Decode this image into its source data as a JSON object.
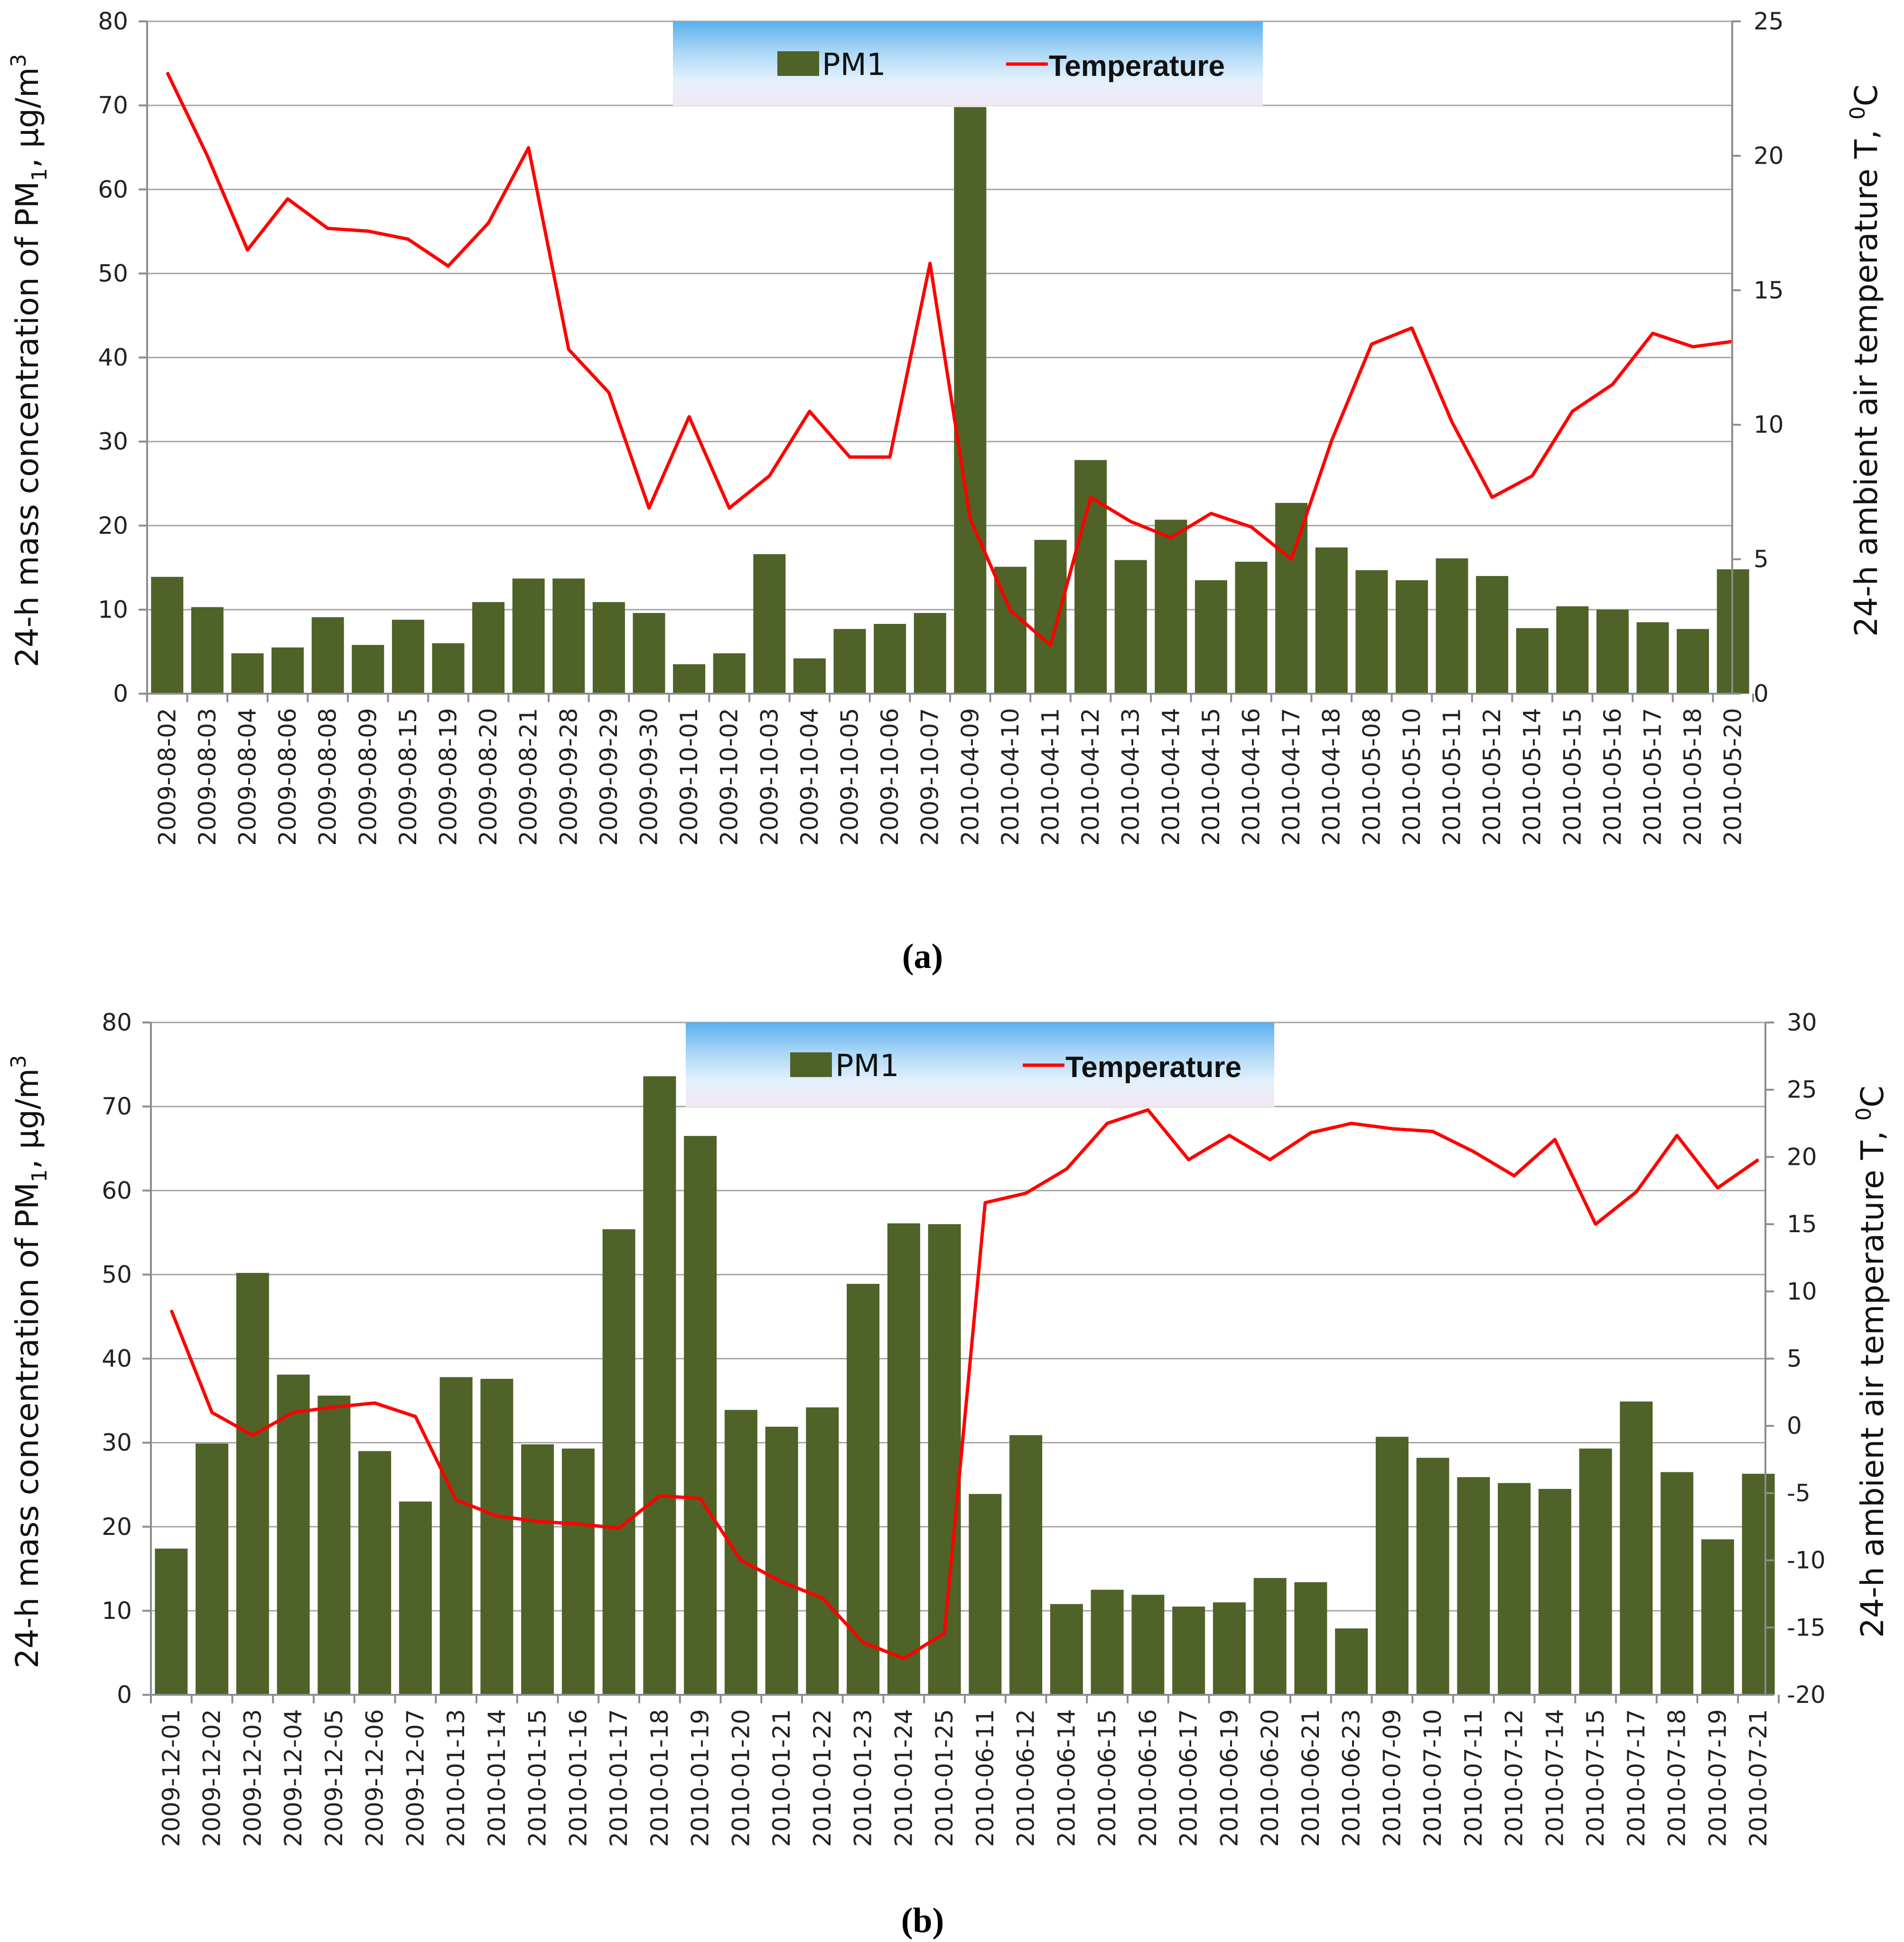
{
  "colors": {
    "bar": "#4f6228",
    "line": "#ff0000"
  },
  "chart_data": [
    {
      "id": "a",
      "type": "bar+line",
      "caption_letter": "a",
      "legend": {
        "bar": "PM1",
        "line": "Temperature",
        "position": "top-center"
      },
      "ylabel_left": "24-h mass concentration of PM1, µg/m3",
      "ylabel_right": "24-h ambient air temperature T, 0C",
      "ylim_left": [
        0,
        80
      ],
      "ylim_right": [
        0,
        25
      ],
      "yticks_left": [
        0,
        10,
        20,
        30,
        40,
        50,
        60,
        70,
        80
      ],
      "yticks_right": [
        0,
        5,
        10,
        15,
        20,
        25
      ],
      "categories": [
        "2009-08-02",
        "2009-08-03",
        "2009-08-04",
        "2009-08-06",
        "2009-08-08",
        "2009-08-09",
        "2009-08-15",
        "2009-08-19",
        "2009-08-20",
        "2009-08-21",
        "2009-09-28",
        "2009-09-29",
        "2009-09-30",
        "2009-10-01",
        "2009-10-02",
        "2009-10-03",
        "2009-10-04",
        "2009-10-05",
        "2009-10-06",
        "2009-10-07",
        "2010-04-09",
        "2010-04-10",
        "2010-04-11",
        "2010-04-12",
        "2010-04-13",
        "2010-04-14",
        "2010-04-15",
        "2010-04-16",
        "2010-04-17",
        "2010-04-18",
        "2010-05-08",
        "2010-05-10",
        "2010-05-11",
        "2010-05-12",
        "2010-05-14",
        "2010-05-15",
        "2010-05-16",
        "2010-05-17",
        "2010-05-18",
        "2010-05-20"
      ],
      "series": [
        {
          "name": "PM1",
          "kind": "bar",
          "axis": "left",
          "values": [
            13.9,
            10.3,
            4.8,
            5.5,
            9.1,
            5.8,
            8.8,
            6.0,
            10.9,
            13.7,
            13.7,
            10.9,
            9.6,
            3.5,
            4.8,
            16.6,
            4.2,
            7.7,
            8.3,
            9.6,
            69.8,
            15.1,
            18.3,
            27.8,
            15.9,
            20.7,
            13.5,
            15.7,
            22.7,
            17.4,
            14.7,
            13.5,
            16.1,
            14.0,
            7.8,
            10.4,
            10.0,
            8.5,
            7.7,
            14.8
          ]
        },
        {
          "name": "Temperature",
          "kind": "line",
          "axis": "right",
          "values": [
            23.1,
            20.0,
            16.5,
            18.4,
            17.3,
            17.2,
            16.9,
            15.9,
            17.5,
            20.3,
            12.8,
            11.2,
            6.9,
            10.3,
            6.9,
            8.1,
            10.5,
            8.8,
            8.8,
            16.0,
            6.5,
            3.1,
            1.8,
            7.3,
            6.4,
            5.8,
            6.7,
            6.2,
            5.0,
            9.4,
            13.0,
            13.6,
            10.1,
            7.3,
            8.1,
            10.5,
            11.5,
            13.4,
            12.9,
            13.1
          ]
        }
      ]
    },
    {
      "id": "b",
      "type": "bar+line",
      "caption_letter": "b",
      "legend": {
        "bar": "PM1",
        "line": "Temperature",
        "position": "top-center"
      },
      "ylabel_left": "24-h mass concentration of PM1, µg/m3",
      "ylabel_right": "24-h ambient air temperature T, 0C",
      "ylim_left": [
        0,
        80
      ],
      "ylim_right": [
        -20,
        30
      ],
      "yticks_left": [
        0,
        10,
        20,
        30,
        40,
        50,
        60,
        70,
        80
      ],
      "yticks_right": [
        -20,
        -15,
        -10,
        -5,
        0,
        5,
        10,
        15,
        20,
        25,
        30
      ],
      "categories": [
        "2009-12-01",
        "2009-12-02",
        "2009-12-03",
        "2009-12-04",
        "2009-12-05",
        "2009-12-06",
        "2009-12-07",
        "2010-01-13",
        "2010-01-14",
        "2010-01-15",
        "2010-01-16",
        "2010-01-17",
        "2010-01-18",
        "2010-01-19",
        "2010-01-20",
        "2010-01-21",
        "2010-01-22",
        "2010-01-23",
        "2010-01-24",
        "2010-01-25",
        "2010-06-11",
        "2010-06-12",
        "2010-06-14",
        "2010-06-15",
        "2010-06-16",
        "2010-06-17",
        "2010-06-19",
        "2010-06-20",
        "2010-06-21",
        "2010-06-23",
        "2010-07-09",
        "2010-07-10",
        "2010-07-11",
        "2010-07-12",
        "2010-07-14",
        "2010-07-15",
        "2010-07-17",
        "2010-07-18",
        "2010-07-19",
        "2010-07-21"
      ],
      "series": [
        {
          "name": "PM1",
          "kind": "bar",
          "axis": "left",
          "values": [
            17.4,
            29.9,
            50.2,
            38.1,
            35.6,
            29.0,
            23.0,
            37.8,
            37.6,
            29.8,
            29.3,
            55.4,
            73.6,
            66.5,
            33.9,
            31.9,
            34.2,
            48.9,
            56.1,
            56.0,
            23.9,
            30.9,
            10.8,
            12.5,
            11.9,
            10.5,
            11.0,
            13.9,
            13.4,
            7.9,
            30.7,
            28.2,
            25.9,
            25.2,
            24.5,
            29.3,
            34.9,
            26.5,
            18.5,
            26.3
          ]
        },
        {
          "name": "Temperature",
          "kind": "line",
          "axis": "right",
          "values": [
            8.6,
            1.0,
            -0.7,
            1.0,
            1.4,
            1.7,
            0.7,
            -5.5,
            -6.7,
            -7.1,
            -7.3,
            -7.6,
            -5.2,
            -5.4,
            -10.0,
            -11.6,
            -12.8,
            -16.1,
            -17.3,
            -15.4,
            16.6,
            17.3,
            19.1,
            22.5,
            23.5,
            19.8,
            21.6,
            19.8,
            21.8,
            22.5,
            22.1,
            21.9,
            20.4,
            18.6,
            21.3,
            15.0,
            17.4,
            21.6,
            17.7,
            19.8
          ]
        }
      ]
    }
  ]
}
